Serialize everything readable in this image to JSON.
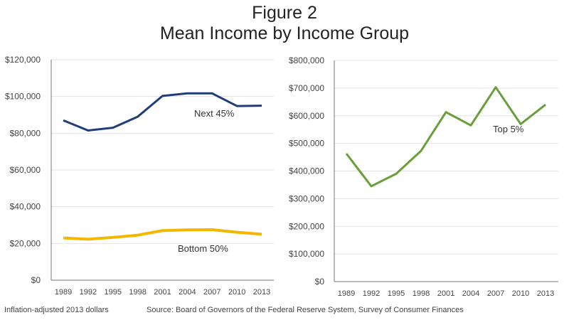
{
  "title_line1": "Figure 2",
  "title_line2": "Mean Income by Income Group",
  "footnote_left": "Inflation-adjusted  2013 dollars",
  "footnote_source": "Source: Board of Governors of the Federal Reserve System, Survey of Consumer Finances",
  "chart_data": [
    {
      "type": "line",
      "categories": [
        "1989",
        "1992",
        "1995",
        "1998",
        "2001",
        "2004",
        "2007",
        "2010",
        "2013"
      ],
      "ylim": [
        0,
        120000
      ],
      "yticks": [
        "$0",
        "$20,000",
        "$40,000",
        "$60,000",
        "$80,000",
        "$100,000",
        "$120,000"
      ],
      "grid": true,
      "series": [
        {
          "name": "Next 45%",
          "color": "#1f3d7a",
          "values": [
            87000,
            81500,
            83000,
            89000,
            100300,
            101700,
            101700,
            94800,
            95000
          ]
        },
        {
          "name": "Bottom 50%",
          "color": "#f2b800",
          "values": [
            23000,
            22300,
            23300,
            24500,
            27000,
            27400,
            27500,
            26100,
            25000
          ]
        }
      ]
    },
    {
      "type": "line",
      "categories": [
        "1989",
        "1992",
        "1995",
        "1998",
        "2001",
        "2004",
        "2007",
        "2010",
        "2013"
      ],
      "ylim": [
        0,
        800000
      ],
      "yticks": [
        "$0",
        "$100,000",
        "$200,000",
        "$300,000",
        "$400,000",
        "$500,000",
        "$600,000",
        "$700,000",
        "$800,000"
      ],
      "grid": true,
      "series": [
        {
          "name": "Top 5%",
          "color": "#6a9e3b",
          "values": [
            463000,
            345000,
            390000,
            473000,
            613000,
            565000,
            703000,
            570000,
            640000
          ]
        }
      ]
    }
  ]
}
